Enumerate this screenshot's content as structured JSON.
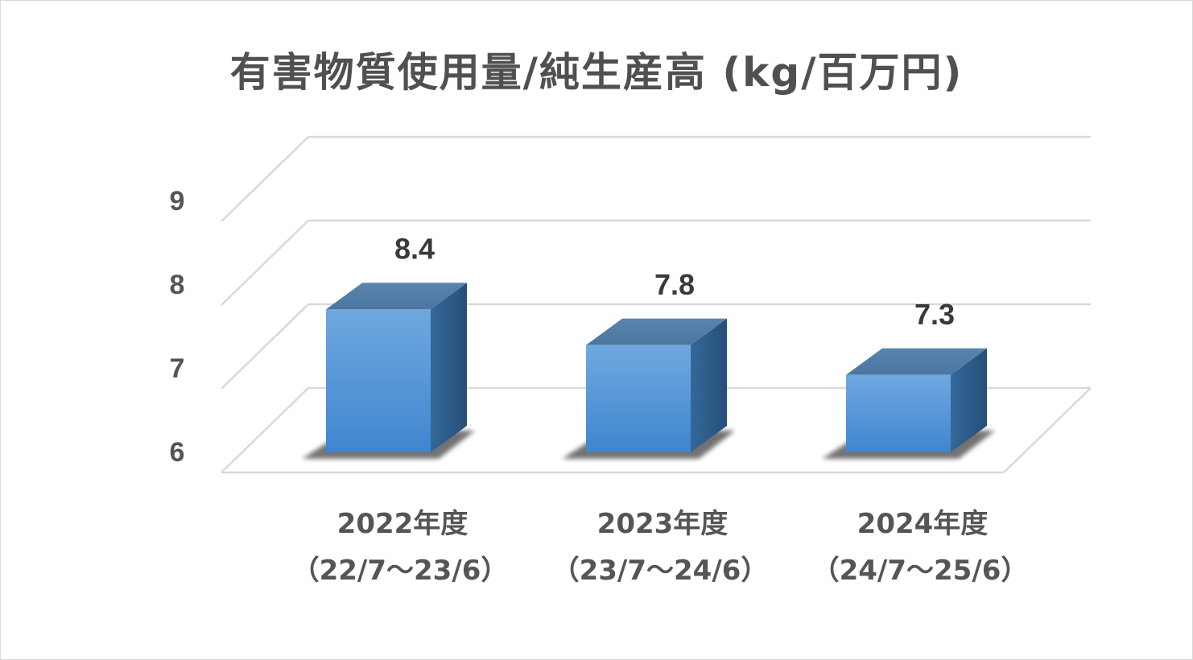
{
  "chart_data": {
    "type": "bar",
    "title": "有害物質使用量/純生産高 (kg/百万円)",
    "categories": [
      [
        "2022年度",
        "（22/7～23/6）"
      ],
      [
        "2023年度",
        "（23/7～24/6）"
      ],
      [
        "2024年度",
        "（24/7～25/6）"
      ]
    ],
    "values": [
      8.4,
      7.8,
      7.3
    ],
    "data_labels": [
      "8.4",
      "7.8",
      "7.3"
    ],
    "ylim": [
      6,
      9
    ],
    "yticks": [
      "6",
      "7",
      "8",
      "9"
    ],
    "grid": true,
    "legend": "none",
    "style": "3d-column",
    "colors": {
      "bar_front": "#5b9bd5",
      "bar_side": "#2e5f8f",
      "bar_top": "#4f7aa8",
      "grid": "#d9d9d9",
      "text": "#555555"
    }
  }
}
